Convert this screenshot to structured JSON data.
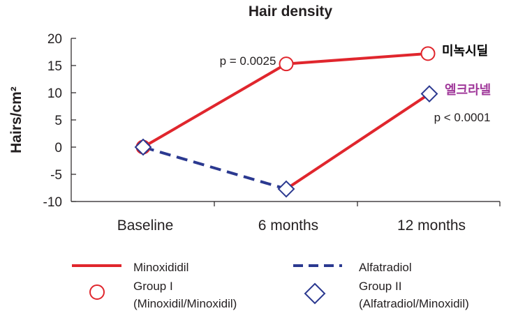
{
  "chart_data": {
    "type": "line",
    "title": "Hair density",
    "ylabel": "Hairs/cm²",
    "xlabel": "",
    "ylim": [
      -10,
      20
    ],
    "yticks": [
      20,
      15,
      10,
      5,
      0,
      -5,
      -10
    ],
    "categories": [
      "Baseline",
      "6 months",
      "12 months"
    ],
    "grid": false,
    "series": [
      {
        "name": "Minoxididil",
        "color": "#e0262d",
        "line_style": "solid",
        "marker": "circle",
        "values": [
          0,
          15.3,
          17.2
        ]
      },
      {
        "name": "Alfatradiol",
        "color": "#2b3990",
        "line_style": "dashed",
        "marker": "diamond",
        "values": [
          0,
          -7.7,
          9.8
        ]
      }
    ],
    "annotations": {
      "p1": "p = 0.0025",
      "p2": "p < 0.0001",
      "label_minoxidil": "미녹시딜",
      "label_alfatradiol": "엘크라넬"
    },
    "annotation_colors": {
      "label_minoxidil": "#000000",
      "label_alfatradiol": "#a0389a"
    },
    "legend": {
      "placement": "bottom",
      "line_items": [
        {
          "label": "Minoxididil",
          "color": "#e0262d",
          "style": "solid"
        },
        {
          "label": "Alfatradiol",
          "color": "#2b3990",
          "style": "dashed"
        }
      ],
      "marker_items": [
        {
          "marker": "circle",
          "color": "#e0262d",
          "label_line1": "Group I",
          "label_line2": "(Minoxidil/Minoxidil)"
        },
        {
          "marker": "diamond",
          "color": "#2b3990",
          "label_line1": "Group II",
          "label_line2": "(Alfatradiol/Minoxidil)"
        }
      ]
    }
  }
}
